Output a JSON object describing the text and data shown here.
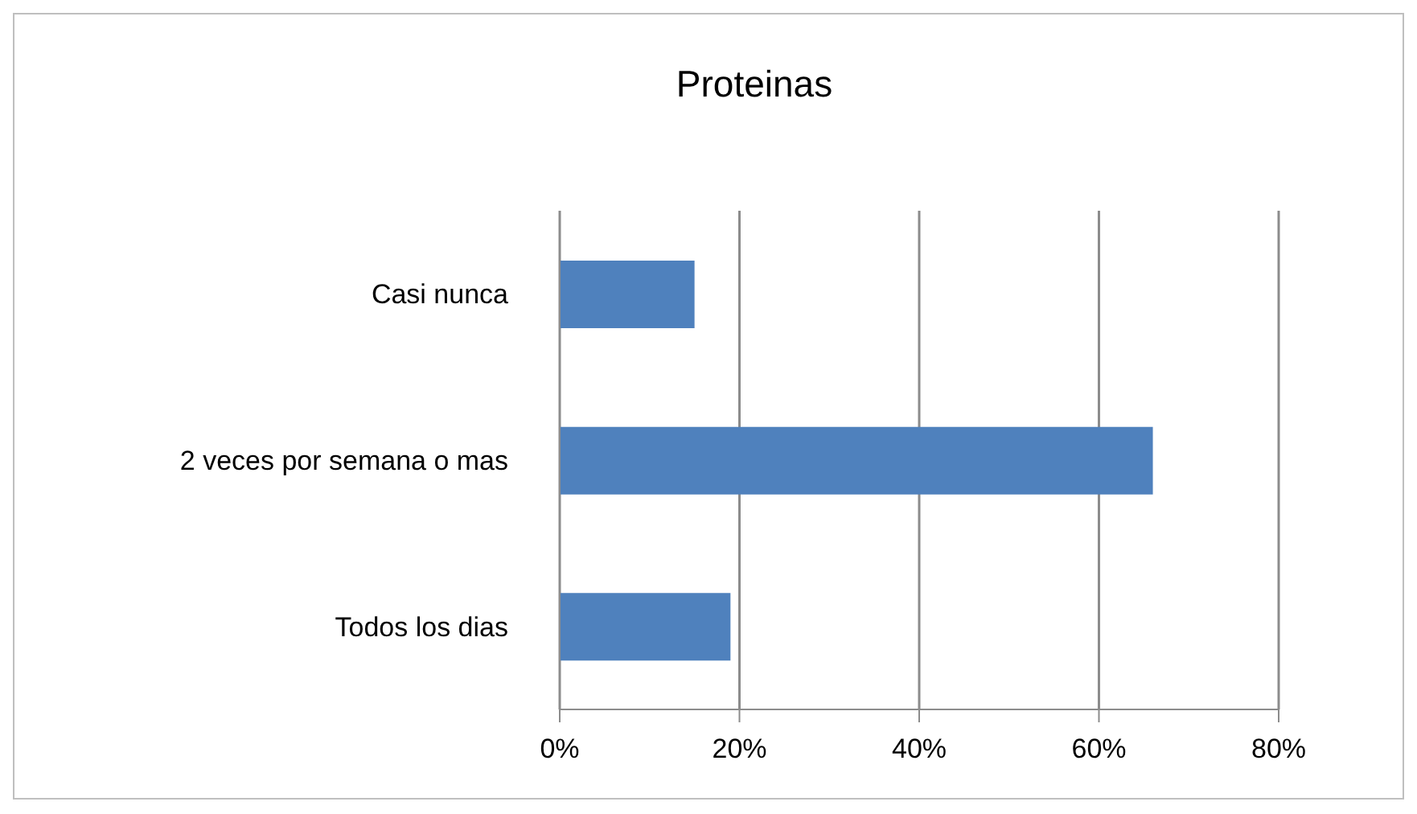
{
  "chart_data": {
    "type": "bar",
    "orientation": "horizontal",
    "title": "Proteinas",
    "categories": [
      "Casi nunca",
      "2 veces por semana o mas",
      "Todos los dias"
    ],
    "values": [
      15,
      66,
      19
    ],
    "color": "#4f81bd",
    "xlim": [
      0,
      80
    ],
    "xticks": [
      {
        "value": 0,
        "label": "0%"
      },
      {
        "value": 20,
        "label": "20%"
      },
      {
        "value": 40,
        "label": "40%"
      },
      {
        "value": 60,
        "label": "60%"
      },
      {
        "value": 80,
        "label": "80%"
      }
    ],
    "grid": "x"
  }
}
